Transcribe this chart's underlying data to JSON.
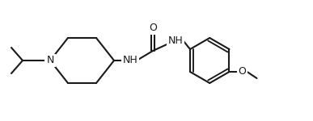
{
  "bg_color": "#ffffff",
  "line_color": "#1a1a1a",
  "line_width": 1.5,
  "font_size": 9.0,
  "fig_width": 3.87,
  "fig_height": 1.5,
  "dpi": 100,
  "xlim": [
    0,
    387
  ],
  "ylim": [
    0,
    150
  ]
}
